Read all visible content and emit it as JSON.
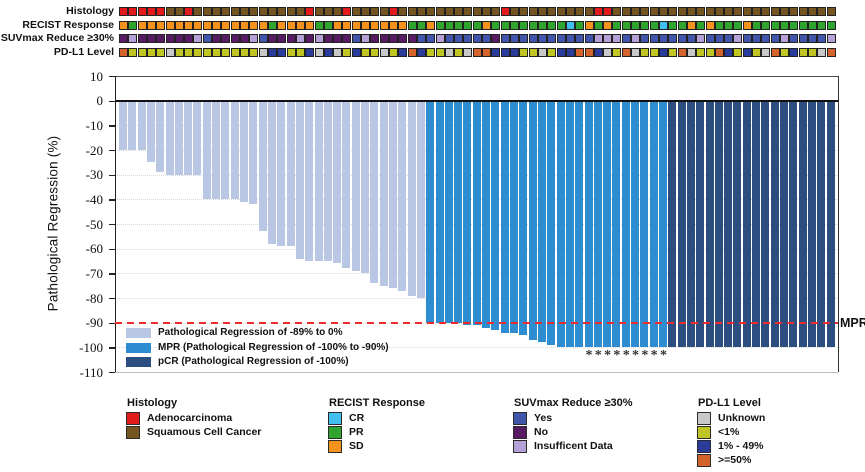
{
  "chart_data": {
    "type": "bar",
    "title": "",
    "ylabel": "Pathological Regression (%)",
    "ylim": [
      -110,
      10
    ],
    "yticks": [
      10,
      0,
      -10,
      -20,
      -30,
      -40,
      -50,
      -60,
      -70,
      -80,
      -90,
      -100,
      -110
    ],
    "grid": "dotted-horizontal",
    "n_patients": 77,
    "values": [
      -20,
      -20,
      -20,
      -25,
      -29,
      -30,
      -30,
      -30,
      -30,
      -40,
      -40,
      -40,
      -40,
      -41,
      -42,
      -53,
      -58,
      -59,
      -59,
      -64,
      -65,
      -65,
      -65,
      -66,
      -68,
      -69,
      -70,
      -74,
      -75,
      -76,
      -77,
      -79,
      -80,
      -90,
      -90,
      -90,
      -90,
      -91,
      -91,
      -92,
      -93,
      -94,
      -94,
      -95,
      -97,
      -98,
      -99,
      -100,
      -100,
      -100,
      -100,
      -100,
      -100,
      -100,
      -100,
      -100,
      -100,
      -100,
      -100,
      -100,
      -100,
      -100,
      -100,
      -100,
      -100,
      -100,
      -100,
      -100,
      -100,
      -100,
      -100,
      -100,
      -100,
      -100,
      -100,
      -100,
      -100
    ],
    "bar_group_counts": {
      "light": 33,
      "mpr": 26,
      "pcr": 18
    },
    "bar_groups": [
      {
        "key": "light",
        "label": "Pathological Regression of -89% to 0%",
        "color": "#b9c7e4"
      },
      {
        "key": "mpr",
        "label": "MPR (Pathological Regression of -100% to -90%)",
        "color": "#2e8dd1"
      },
      {
        "key": "pcr",
        "label": "pCR (Pathological Regression of -100%)",
        "color": "#2b4d80"
      }
    ],
    "mpr_line": {
      "value": -90,
      "label": "MPR",
      "color": "#ee2a2c",
      "style": "dashed"
    },
    "asterisk_bar_indices": [
      51,
      52,
      53,
      54,
      55,
      56,
      57,
      58,
      59
    ],
    "tracks": [
      {
        "key": "histology",
        "label": "Histology",
        "values": [
          "R",
          "R",
          "R",
          "R",
          "R",
          "S",
          "S",
          "R",
          "S",
          "S",
          "S",
          "S",
          "S",
          "S",
          "S",
          "S",
          "S",
          "S",
          "S",
          "S",
          "R",
          "S",
          "S",
          "S",
          "R",
          "S",
          "S",
          "S",
          "S",
          "R",
          "S",
          "S",
          "S",
          "S",
          "S",
          "S",
          "S",
          "S",
          "S",
          "S",
          "S",
          "R",
          "S",
          "S",
          "S",
          "S",
          "S",
          "S",
          "S",
          "S",
          "S",
          "R",
          "R",
          "S",
          "S",
          "S",
          "S",
          "S",
          "S",
          "S",
          "S",
          "S",
          "S",
          "S",
          "S",
          "S",
          "S",
          "S",
          "S",
          "S",
          "S",
          "S",
          "S",
          "S",
          "S",
          "S",
          "S"
        ]
      },
      {
        "key": "recist",
        "label": "RECIST Response",
        "values": [
          "SD",
          "PR",
          "SD",
          "SD",
          "SD",
          "SD",
          "SD",
          "SD",
          "SD",
          "SD",
          "SD",
          "SD",
          "SD",
          "SD",
          "SD",
          "SD",
          "PR",
          "SD",
          "SD",
          "SD",
          "SD",
          "PR",
          "PR",
          "SD",
          "SD",
          "SD",
          "SD",
          "SD",
          "SD",
          "SD",
          "SD",
          "PR",
          "PR",
          "SD",
          "PR",
          "PR",
          "PR",
          "PR",
          "PR",
          "SD",
          "PR",
          "PR",
          "PR",
          "PR",
          "PR",
          "PR",
          "PR",
          "PR",
          "CR",
          "PR",
          "SD",
          "PR",
          "SD",
          "PR",
          "PR",
          "PR",
          "PR",
          "PR",
          "CR",
          "PR",
          "PR",
          "SD",
          "PR",
          "SD",
          "PR",
          "PR",
          "PR",
          "SD",
          "PR",
          "PR",
          "PR",
          "PR",
          "PR",
          "PR",
          "PR",
          "PR",
          "PR"
        ]
      },
      {
        "key": "suvmax",
        "label": "SUVmax Reduce ≥30%",
        "values": [
          "N",
          "I",
          "N",
          "N",
          "N",
          "N",
          "N",
          "N",
          "I",
          "Y",
          "N",
          "N",
          "N",
          "N",
          "I",
          "Y",
          "N",
          "N",
          "N",
          "I",
          "N",
          "I",
          "N",
          "N",
          "N",
          "Y",
          "I",
          "N",
          "N",
          "N",
          "N",
          "N",
          "Y",
          "Y",
          "I",
          "Y",
          "Y",
          "Y",
          "Y",
          "Y",
          "N",
          "Y",
          "Y",
          "Y",
          "Y",
          "Y",
          "Y",
          "Y",
          "Y",
          "Y",
          "Y",
          "I",
          "I",
          "I",
          "Y",
          "I",
          "Y",
          "Y",
          "Y",
          "Y",
          "Y",
          "Y",
          "I",
          "Y",
          "Y",
          "Y",
          "I",
          "Y",
          "Y",
          "Y",
          "Y",
          "I",
          "Y",
          "Y",
          "Y",
          "Y",
          "I"
        ]
      },
      {
        "key": "pdl1",
        "label": "PD-L1 Level",
        "values": [
          "H",
          "L",
          "L",
          "L",
          "L",
          "U",
          "L",
          "L",
          "L",
          "L",
          "L",
          "L",
          "L",
          "L",
          "L",
          "U",
          "M",
          "M",
          "L",
          "L",
          "M",
          "U",
          "M",
          "U",
          "L",
          "M",
          "L",
          "L",
          "U",
          "L",
          "M",
          "H",
          "M",
          "L",
          "L",
          "U",
          "L",
          "U",
          "H",
          "H",
          "M",
          "M",
          "M",
          "L",
          "L",
          "U",
          "L",
          "M",
          "M",
          "H",
          "H",
          "M",
          "U",
          "L",
          "H",
          "U",
          "L",
          "L",
          "M",
          "L",
          "H",
          "U",
          "L",
          "L",
          "H",
          "M",
          "L",
          "M",
          "L",
          "U",
          "H",
          "L",
          "M",
          "L",
          "L",
          "U",
          "H"
        ]
      }
    ],
    "track_colors": {
      "histology": {
        "R": "#e31a1c",
        "S": "#74551f"
      },
      "recist": {
        "SD": "#f6921e",
        "PR": "#2fa52f",
        "CR": "#41c0f0"
      },
      "suvmax": {
        "Y": "#4156ab",
        "N": "#571a63",
        "I": "#b6a0d8"
      },
      "pdl1": {
        "U": "#c9c9c9",
        "L": "#c0c724",
        "M": "#2b3b99",
        "H": "#d2632b"
      }
    }
  },
  "bottom_legend": [
    {
      "title": "Histology",
      "items": [
        {
          "label": "Adenocarcinoma",
          "color": "#e31a1c"
        },
        {
          "label": "Squamous Cell Cancer",
          "color": "#74551f"
        }
      ]
    },
    {
      "title": "RECIST Response",
      "items": [
        {
          "label": "CR",
          "color": "#41c0f0"
        },
        {
          "label": "PR",
          "color": "#2fa52f"
        },
        {
          "label": "SD",
          "color": "#f6921e"
        }
      ]
    },
    {
      "title": "SUVmax Reduce ≥30%",
      "items": [
        {
          "label": "Yes",
          "color": "#4156ab"
        },
        {
          "label": "No",
          "color": "#571a63"
        },
        {
          "label": "Insufficent Data",
          "color": "#b6a0d8"
        }
      ]
    },
    {
      "title": "PD-L1 Level",
      "items": [
        {
          "label": "Unknown",
          "color": "#c9c9c9"
        },
        {
          "label": "<1%",
          "color": "#c0c724"
        },
        {
          "label": "1% - 49%",
          "color": "#2b3b99"
        },
        {
          "label": ">=50%",
          "color": "#d2632b"
        }
      ]
    }
  ]
}
